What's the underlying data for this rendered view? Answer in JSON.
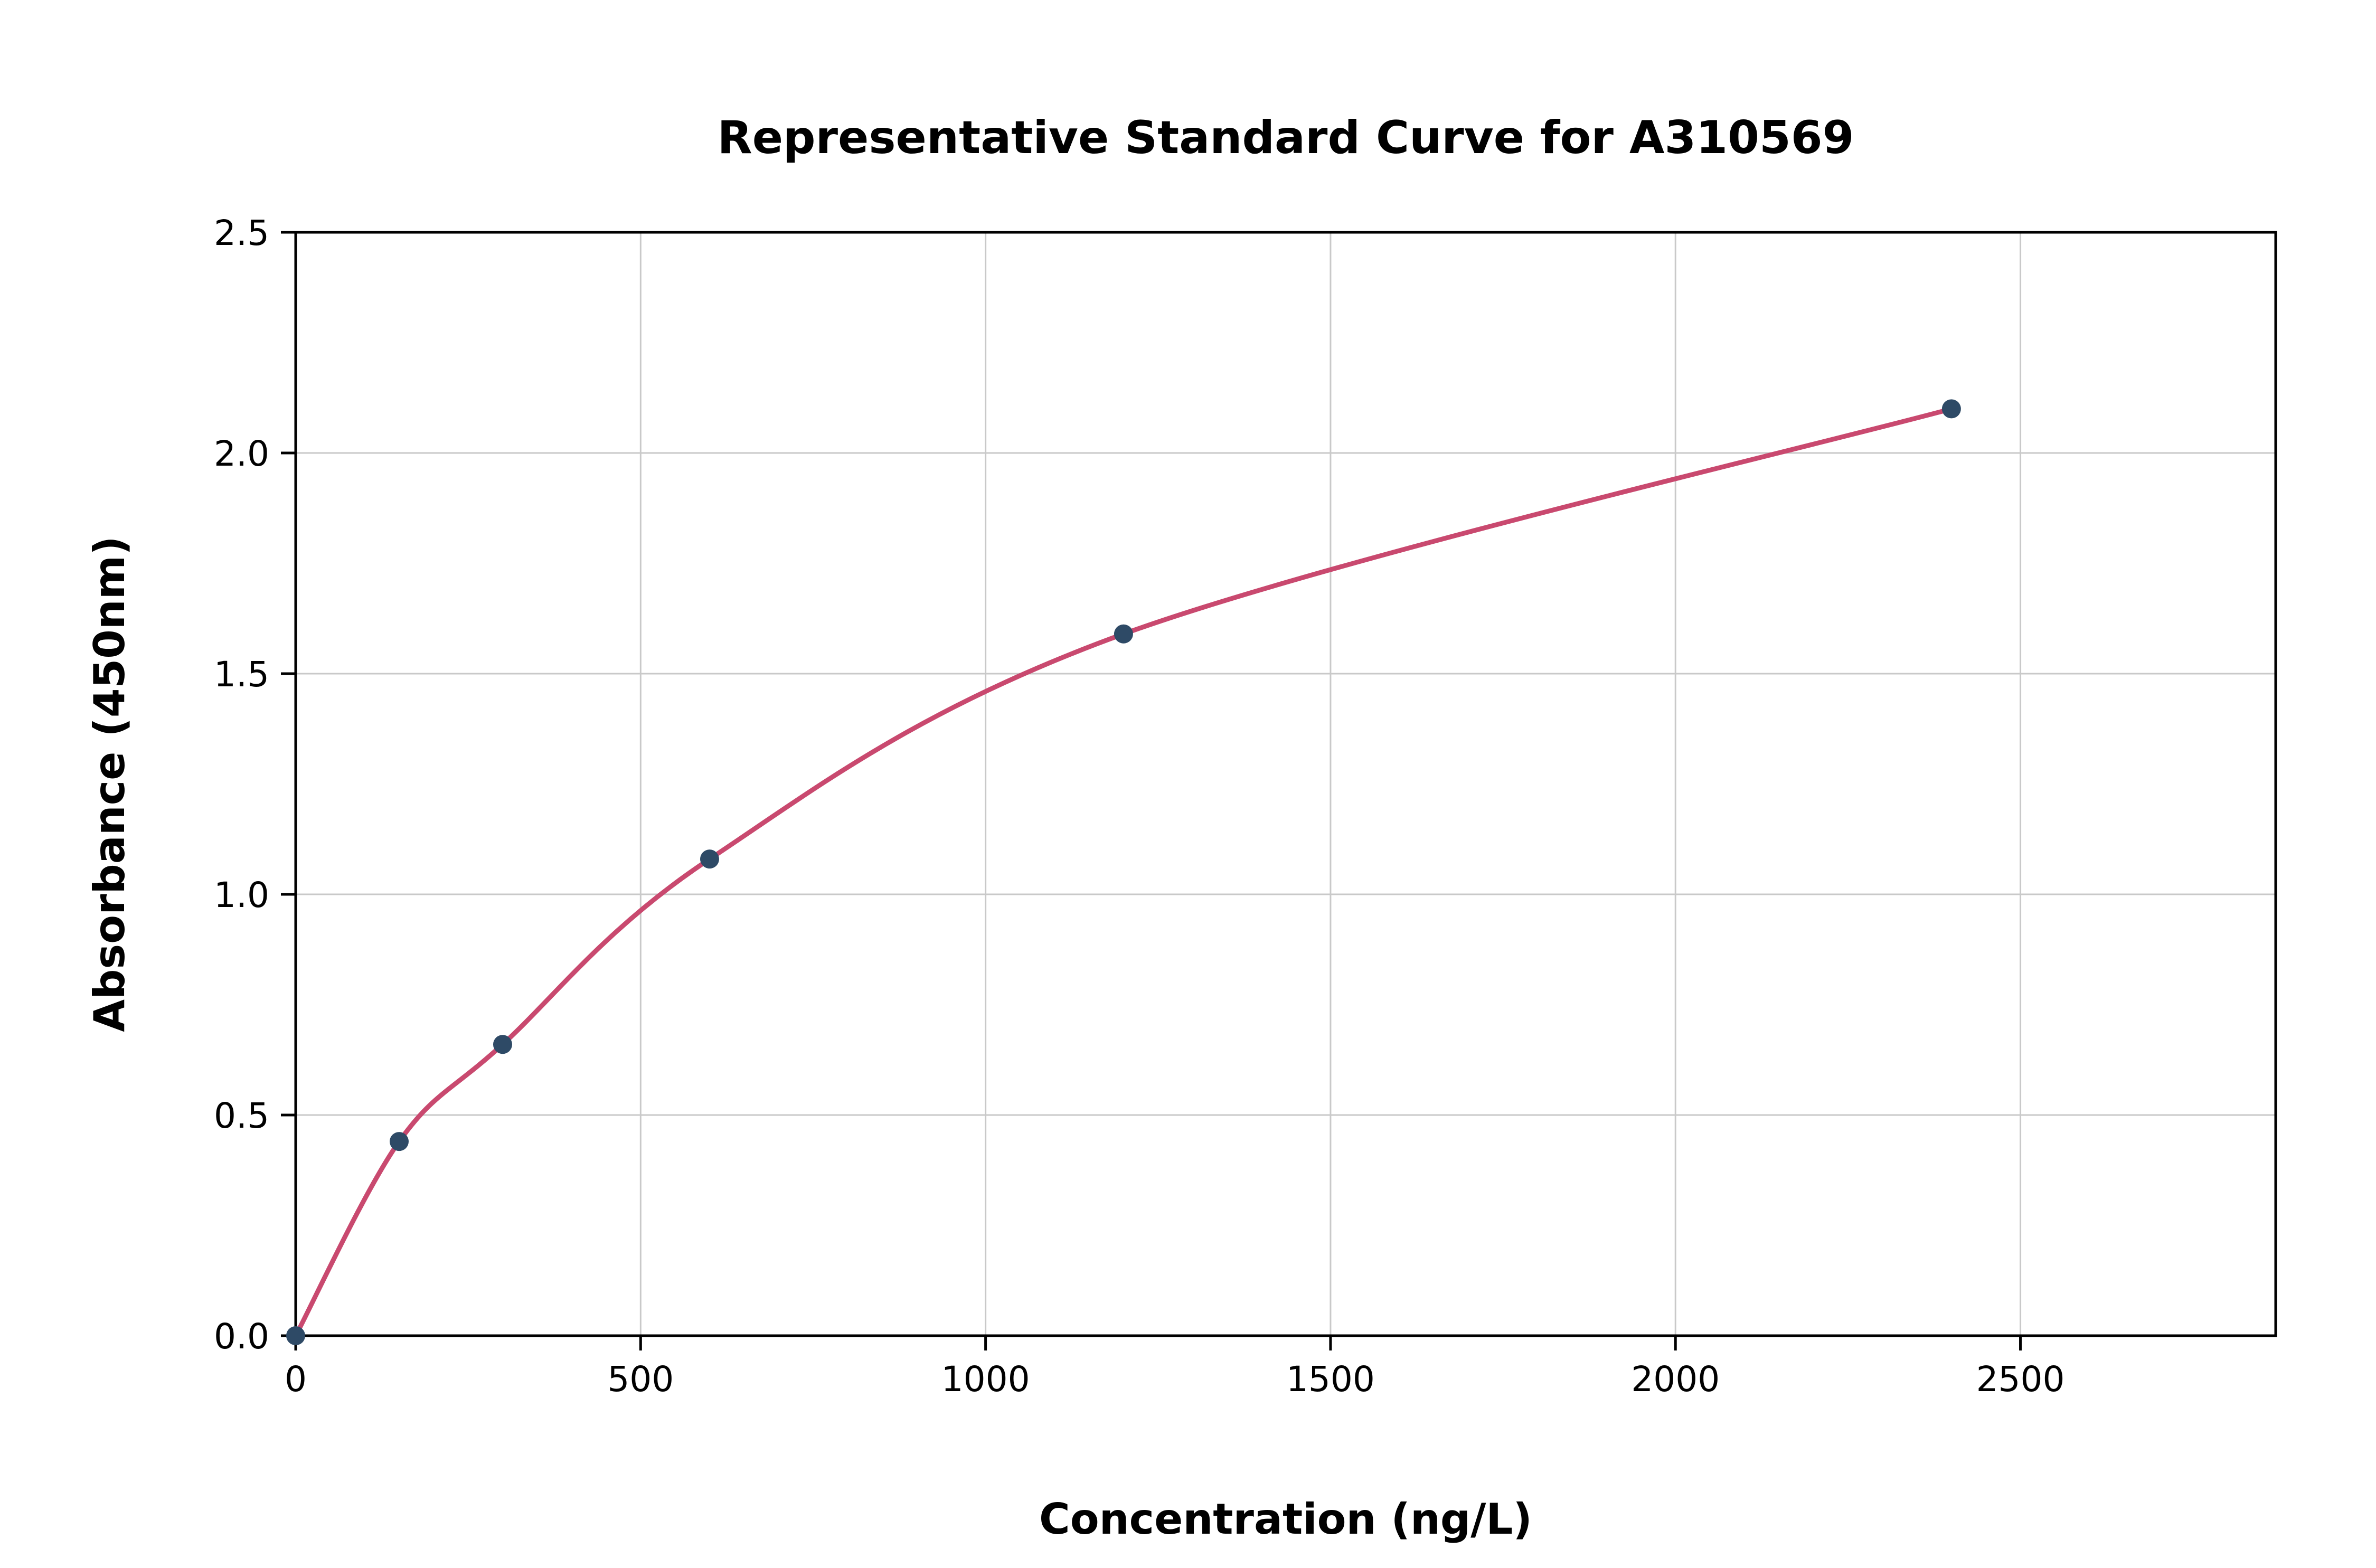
{
  "chart_data": {
    "type": "scatter",
    "title": "Representative Standard Curve for A310569",
    "xlabel": "Concentration (ng/L)",
    "ylabel": "Absorbance (450nm)",
    "x": [
      0,
      150,
      300,
      600,
      1200,
      2400
    ],
    "y": [
      0.0,
      0.44,
      0.66,
      1.08,
      1.59,
      2.1
    ],
    "xlim": [
      0,
      2870
    ],
    "ylim": [
      0,
      2.5
    ],
    "x_ticks": [
      0,
      500,
      1000,
      1500,
      2000,
      2500
    ],
    "y_ticks": [
      0.0,
      0.5,
      1.0,
      1.5,
      2.0,
      2.5
    ],
    "grid": true,
    "legend": "none",
    "line_color": "#c9496f",
    "marker_color": "#2e4a66",
    "grid_color": "#c9c9c9",
    "axis_color": "#000000",
    "background": "#ffffff"
  }
}
